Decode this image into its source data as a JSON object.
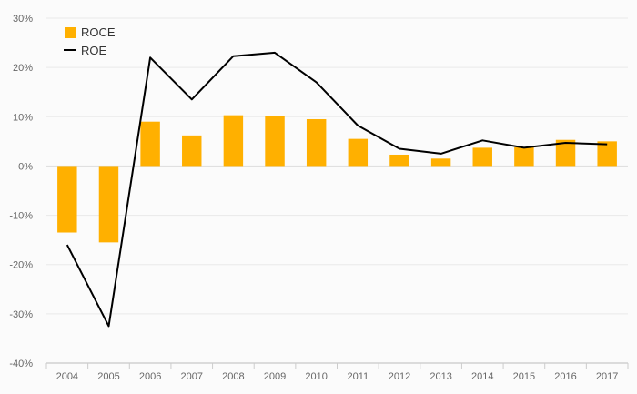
{
  "chart_data": {
    "type": "bar",
    "categories": [
      "2004",
      "2005",
      "2006",
      "2007",
      "2008",
      "2009",
      "2010",
      "2011",
      "2012",
      "2013",
      "2014",
      "2015",
      "2016",
      "2017"
    ],
    "series": [
      {
        "name": "ROCE",
        "type": "bar",
        "color": "#FFB000",
        "values": [
          -13.5,
          -15.5,
          9.0,
          6.2,
          10.3,
          10.2,
          9.5,
          5.5,
          2.3,
          1.5,
          3.7,
          3.8,
          5.3,
          5.0
        ]
      },
      {
        "name": "ROE",
        "type": "line",
        "color": "#000000",
        "values": [
          -16.0,
          -32.5,
          22.0,
          13.5,
          22.3,
          23.0,
          17.0,
          8.2,
          3.5,
          2.5,
          5.2,
          3.7,
          4.7,
          4.4
        ]
      }
    ],
    "yticks": [
      "30%",
      "20%",
      "10%",
      "0%",
      "-10%",
      "-20%",
      "-30%",
      "-40%"
    ],
    "ylim": [
      -40,
      30
    ],
    "grid": true,
    "legend": "top-left"
  }
}
